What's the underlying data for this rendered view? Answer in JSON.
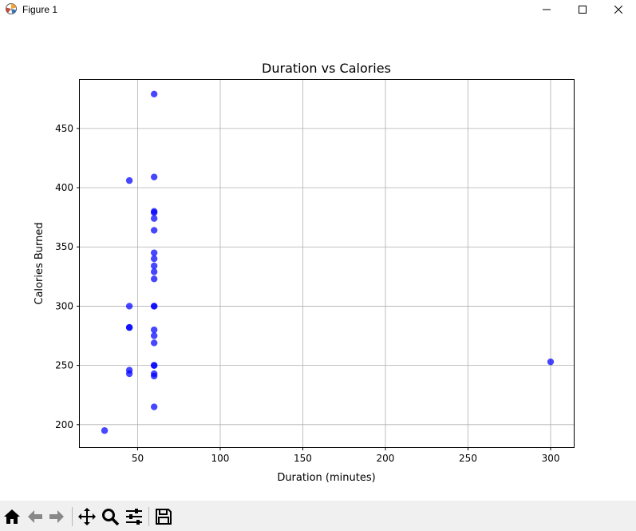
{
  "window": {
    "title": "Figure 1"
  },
  "toolbar": {
    "buttons": [
      {
        "name": "home-icon",
        "label": "Home"
      },
      {
        "name": "back-arrow-icon",
        "label": "Back"
      },
      {
        "name": "forward-arrow-icon",
        "label": "Forward"
      },
      {
        "name": "pan-move-icon",
        "label": "Pan"
      },
      {
        "name": "zoom-magnifier-icon",
        "label": "Zoom"
      },
      {
        "name": "configure-subplots-icon",
        "label": "Configure subplots"
      },
      {
        "name": "save-floppy-icon",
        "label": "Save"
      }
    ]
  },
  "colors": {
    "points": "#0000ff",
    "grid": "#b0b0b0",
    "toolbar_bg": "#f0f0f0"
  },
  "chart_data": {
    "type": "scatter",
    "title": "Duration vs Calories",
    "xlabel": "Duration (minutes)",
    "ylabel": "Calories Burned",
    "xlim": [
      15,
      314
    ],
    "ylim": [
      181,
      491
    ],
    "xticks": [
      50,
      100,
      150,
      200,
      250,
      300
    ],
    "yticks": [
      200,
      250,
      300,
      350,
      400,
      450
    ],
    "grid": true,
    "legend": null,
    "series": [
      {
        "points": [
          [
            30,
            195
          ],
          [
            45,
            406
          ],
          [
            45,
            300
          ],
          [
            45,
            282
          ],
          [
            45,
            282
          ],
          [
            45,
            246
          ],
          [
            45,
            243
          ],
          [
            60,
            479
          ],
          [
            60,
            409
          ],
          [
            60,
            380
          ],
          [
            60,
            379
          ],
          [
            60,
            374
          ],
          [
            60,
            364
          ],
          [
            60,
            345
          ],
          [
            60,
            340
          ],
          [
            60,
            334
          ],
          [
            60,
            329
          ],
          [
            60,
            323
          ],
          [
            60,
            300
          ],
          [
            60,
            300
          ],
          [
            60,
            280
          ],
          [
            60,
            275
          ],
          [
            60,
            269
          ],
          [
            60,
            250
          ],
          [
            60,
            250
          ],
          [
            60,
            243
          ],
          [
            60,
            241
          ],
          [
            60,
            215
          ],
          [
            300,
            253
          ]
        ]
      }
    ]
  }
}
